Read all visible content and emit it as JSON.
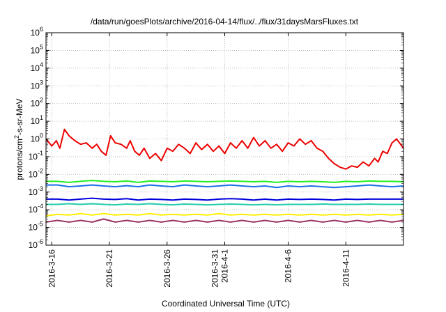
{
  "chart_data": {
    "type": "line",
    "title": "/data/run/goesPlots/archive/2016-04-14/flux/../flux/31daysMarsFluxes.txt",
    "xlabel": "Coordinated Universal Time (UTC)",
    "ylabel_parts": [
      "protons/cm",
      "2",
      "-s-sr-MeV"
    ],
    "yscale": "log",
    "ylim_exp": [
      -6,
      6
    ],
    "ytick_exponents": [
      -6,
      -5,
      -4,
      -3,
      -2,
      -1,
      0,
      1,
      2,
      3,
      4,
      5,
      6
    ],
    "xlim_days": [
      0,
      31
    ],
    "grid": true,
    "xticks": [
      {
        "day": 0.5,
        "lines": [
          "2016-3-16"
        ]
      },
      {
        "day": 5.5,
        "lines": [
          "2016-3-21"
        ]
      },
      {
        "day": 10.5,
        "lines": [
          "2016-3-26"
        ]
      },
      {
        "day": 15.5,
        "lines": [
          "2016-3-31",
          "2016-4-1"
        ]
      },
      {
        "day": 21.0,
        "lines": [
          "2016-4-6"
        ]
      },
      {
        "day": 26.0,
        "lines": [
          "2016-4-11"
        ]
      }
    ],
    "series": [
      {
        "color": "#ee0000",
        "x": [
          0,
          0.5,
          0.9,
          1.2,
          1.6,
          2.0,
          2.5,
          3.0,
          3.5,
          4.0,
          4.4,
          4.8,
          5.2,
          5.6,
          6.0,
          6.5,
          7.0,
          7.3,
          7.7,
          8.1,
          8.5,
          9.0,
          9.5,
          10.0,
          10.5,
          11.0,
          11.5,
          12.0,
          12.5,
          13.0,
          13.5,
          14.0,
          14.5,
          15.0,
          15.5,
          16.0,
          16.5,
          17.0,
          17.5,
          18.0,
          18.5,
          19.0,
          19.5,
          20.0,
          20.5,
          21.0,
          21.5,
          22.0,
          22.5,
          23.0,
          23.5,
          24.0,
          24.5,
          25.0,
          25.5,
          26.0,
          26.5,
          27.0,
          27.5,
          28.0,
          28.5,
          28.8,
          29.2,
          29.6,
          30.0,
          30.4,
          31.0
        ],
        "y": [
          1.0,
          0.4,
          0.8,
          0.3,
          3.5,
          1.5,
          0.8,
          0.5,
          0.6,
          0.3,
          0.5,
          0.2,
          0.12,
          1.5,
          0.6,
          0.5,
          0.3,
          0.8,
          0.2,
          0.12,
          0.3,
          0.08,
          0.15,
          0.06,
          0.3,
          0.2,
          0.5,
          0.3,
          0.15,
          0.6,
          0.25,
          0.5,
          0.2,
          0.4,
          0.15,
          0.6,
          0.3,
          0.8,
          0.3,
          1.2,
          0.4,
          0.8,
          0.3,
          0.5,
          0.2,
          0.6,
          0.4,
          1.0,
          0.5,
          0.8,
          0.3,
          0.2,
          0.08,
          0.04,
          0.025,
          0.02,
          0.03,
          0.025,
          0.05,
          0.03,
          0.08,
          0.05,
          0.2,
          0.15,
          0.6,
          1.0,
          0.3
        ]
      },
      {
        "color": "#22ee22",
        "x": [
          0,
          1,
          2,
          3,
          4,
          5,
          6,
          7,
          8,
          9,
          10,
          11,
          12,
          13,
          14,
          15,
          16,
          17,
          18,
          19,
          20,
          21,
          22,
          23,
          24,
          25,
          26,
          27,
          28,
          29,
          30,
          31
        ],
        "y": [
          0.004,
          0.004,
          0.0035,
          0.004,
          0.0045,
          0.004,
          0.0038,
          0.0042,
          0.0035,
          0.0042,
          0.004,
          0.0038,
          0.0042,
          0.004,
          0.0038,
          0.004,
          0.0042,
          0.004,
          0.0038,
          0.004,
          0.0035,
          0.004,
          0.0038,
          0.004,
          0.0038,
          0.0035,
          0.004,
          0.0038,
          0.0042,
          0.004,
          0.004,
          0.0038
        ]
      },
      {
        "color": "#1a6fe8",
        "x": [
          0,
          1,
          2,
          3,
          4,
          5,
          6,
          7,
          8,
          9,
          10,
          11,
          12,
          13,
          14,
          15,
          16,
          17,
          18,
          19,
          20,
          21,
          22,
          23,
          24,
          25,
          26,
          27,
          28,
          29,
          30,
          31
        ],
        "y": [
          0.0025,
          0.0025,
          0.002,
          0.0022,
          0.0025,
          0.0022,
          0.002,
          0.0023,
          0.002,
          0.0025,
          0.0022,
          0.002,
          0.0025,
          0.0022,
          0.002,
          0.0022,
          0.0025,
          0.0022,
          0.002,
          0.0022,
          0.0018,
          0.0022,
          0.002,
          0.0022,
          0.002,
          0.0018,
          0.002,
          0.0022,
          0.0025,
          0.0022,
          0.002,
          0.0022
        ]
      },
      {
        "color": "#0000dd",
        "x": [
          0,
          1,
          2,
          3,
          4,
          5,
          6,
          7,
          8,
          9,
          10,
          11,
          12,
          13,
          14,
          15,
          16,
          17,
          18,
          19,
          20,
          21,
          22,
          23,
          24,
          25,
          26,
          27,
          28,
          29,
          30,
          31
        ],
        "y": [
          0.0004,
          0.0004,
          0.00035,
          0.0004,
          0.00045,
          0.0004,
          0.00038,
          0.00042,
          0.00035,
          0.0004,
          0.00038,
          0.00035,
          0.0004,
          0.00038,
          0.00035,
          0.0004,
          0.00042,
          0.0004,
          0.00035,
          0.0004,
          0.00035,
          0.0004,
          0.00038,
          0.0004,
          0.00038,
          0.00035,
          0.0004,
          0.00038,
          0.0004,
          0.0004,
          0.0004,
          0.0004
        ]
      },
      {
        "color": "#22ccaa",
        "x": [
          0,
          1,
          2,
          3,
          4,
          5,
          6,
          7,
          8,
          9,
          10,
          11,
          12,
          13,
          14,
          15,
          16,
          17,
          18,
          19,
          20,
          21,
          22,
          23,
          24,
          25,
          26,
          27,
          28,
          29,
          30,
          31
        ],
        "y": [
          0.0002,
          0.0002,
          0.00022,
          0.0002,
          0.00022,
          0.0002,
          0.00019,
          0.00021,
          0.0002,
          0.00022,
          0.0002,
          0.00019,
          0.00021,
          0.0002,
          0.00019,
          0.0002,
          0.00021,
          0.0002,
          0.00019,
          0.0002,
          0.00019,
          0.0002,
          0.0002,
          0.0002,
          0.00021,
          0.0002,
          0.0002,
          0.0002,
          0.00021,
          0.0002,
          0.0002,
          0.0002
        ]
      },
      {
        "color": "#ffee00",
        "x": [
          0,
          1,
          2,
          3,
          4,
          5,
          6,
          7,
          8,
          9,
          10,
          11,
          12,
          13,
          14,
          15,
          16,
          17,
          18,
          19,
          20,
          21,
          22,
          23,
          24,
          25,
          26,
          27,
          28,
          29,
          30,
          31
        ],
        "y": [
          4.5e-05,
          5.5e-05,
          5e-05,
          6e-05,
          5e-05,
          6e-05,
          5e-05,
          5.5e-05,
          5e-05,
          6e-05,
          5e-05,
          5.5e-05,
          5e-05,
          5.5e-05,
          5e-05,
          6e-05,
          5e-05,
          5.5e-05,
          5e-05,
          5.5e-05,
          5e-05,
          5.5e-05,
          5e-05,
          5.5e-05,
          5e-05,
          5.5e-05,
          5e-05,
          5.5e-05,
          5e-05,
          5.5e-05,
          5e-05,
          5.5e-05
        ]
      },
      {
        "color": "#993366",
        "x": [
          0,
          1,
          2,
          3,
          4,
          5,
          6,
          7,
          8,
          9,
          10,
          11,
          12,
          13,
          14,
          15,
          16,
          17,
          18,
          19,
          20,
          21,
          22,
          23,
          24,
          25,
          26,
          27,
          28,
          29,
          30,
          31
        ],
        "y": [
          2e-05,
          2.5e-05,
          2e-05,
          2.5e-05,
          2e-05,
          3e-05,
          2e-05,
          2.5e-05,
          2e-05,
          2.5e-05,
          2e-05,
          2.5e-05,
          2e-05,
          2.5e-05,
          2e-05,
          2.5e-05,
          2e-05,
          2.5e-05,
          2e-05,
          2.5e-05,
          2e-05,
          2.5e-05,
          2e-05,
          2.5e-05,
          2e-05,
          2.5e-05,
          2e-05,
          2.5e-05,
          2e-05,
          2.5e-05,
          2e-05,
          2.5e-05
        ]
      }
    ]
  }
}
